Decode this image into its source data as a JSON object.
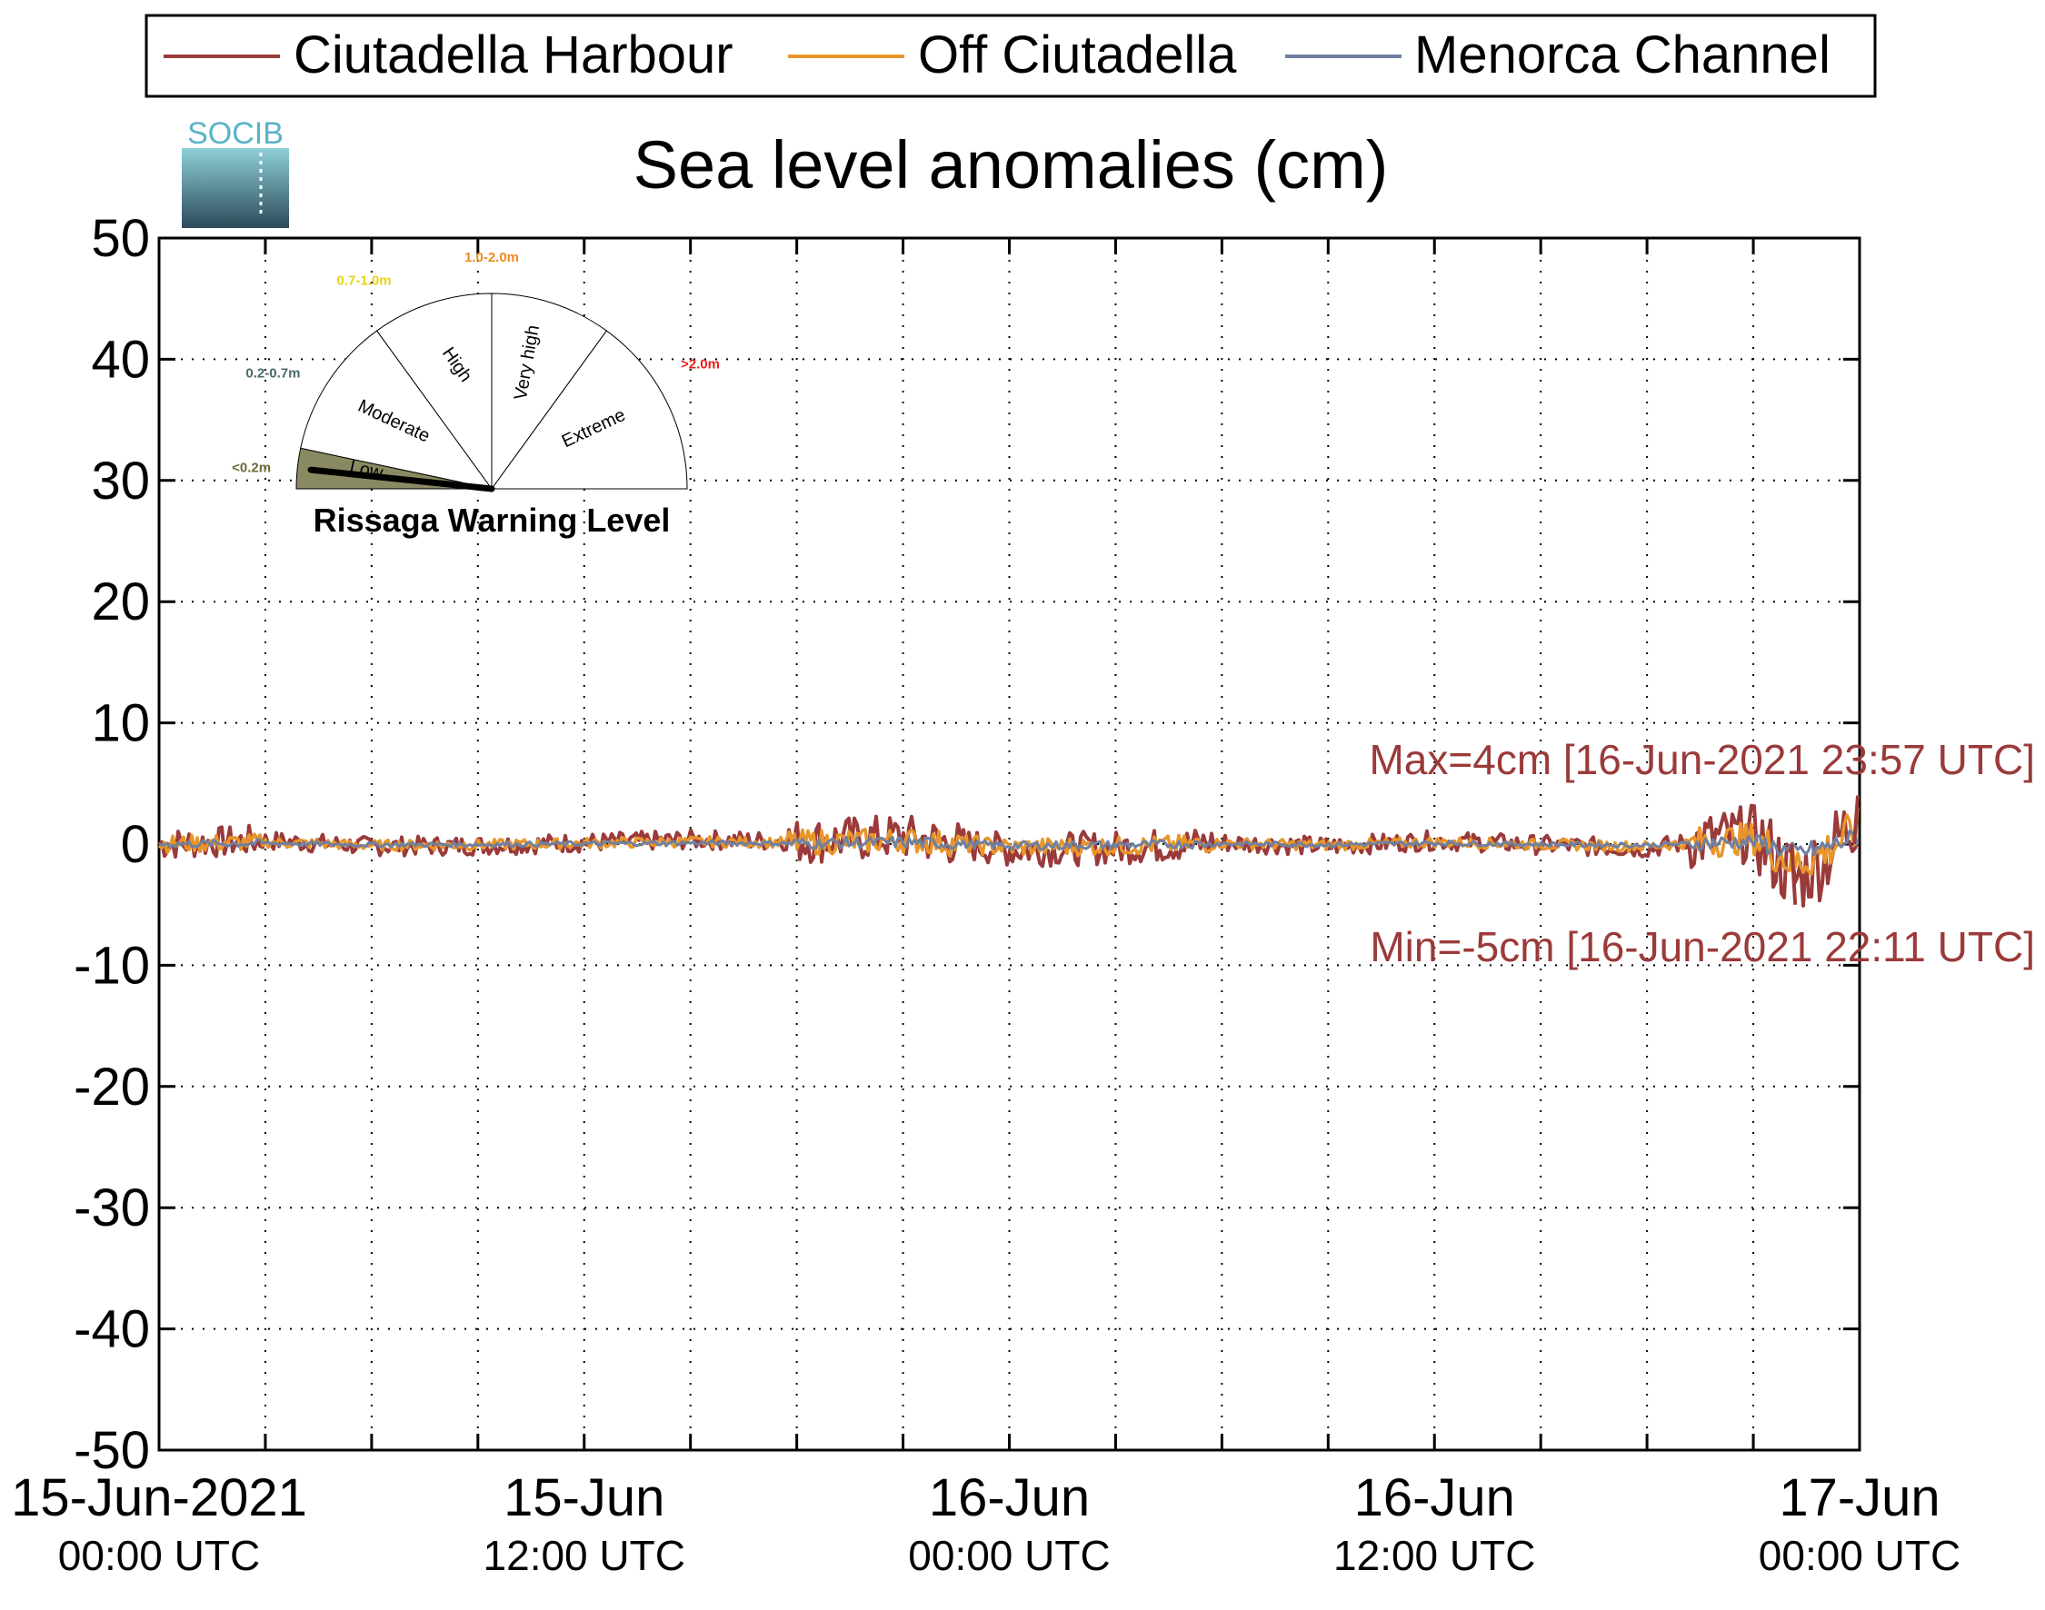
{
  "chart_data": {
    "type": "line",
    "title": "Sea level anomalies (cm)",
    "xlabel": "",
    "ylabel": "",
    "ylim": [
      -50,
      50
    ],
    "yticks": [
      50,
      40,
      30,
      20,
      10,
      0,
      -10,
      -20,
      -30,
      -40,
      -50
    ],
    "xlim": [
      "2021-06-15 00:00",
      "2021-06-17 00:00"
    ],
    "x_tick_labels": [
      {
        "date": "15-Jun-2021",
        "time": "00:00 UTC"
      },
      {
        "date": "15-Jun",
        "time": "12:00 UTC"
      },
      {
        "date": "16-Jun",
        "time": "00:00 UTC"
      },
      {
        "date": "16-Jun",
        "time": "12:00 UTC"
      },
      {
        "date": "17-Jun",
        "time": "00:00 UTC"
      }
    ],
    "grid": true,
    "legend_position": "top",
    "series": [
      {
        "name": "Ciutadella Harbour",
        "color": "#9b3a3a"
      },
      {
        "name": "Off Ciutadella",
        "color": "#e8962a"
      },
      {
        "name": "Menorca Channel",
        "color": "#7080a0"
      }
    ],
    "x": [
      "2021-06-15 00:00",
      "2021-06-15 03:00",
      "2021-06-15 06:00",
      "2021-06-15 09:00",
      "2021-06-15 12:00",
      "2021-06-15 15:00",
      "2021-06-15 18:00",
      "2021-06-15 21:00",
      "2021-06-16 00:00",
      "2021-06-16 03:00",
      "2021-06-16 06:00",
      "2021-06-16 09:00",
      "2021-06-16 12:00",
      "2021-06-16 15:00",
      "2021-06-16 18:00",
      "2021-06-16 21:00",
      "2021-06-16 22:11",
      "2021-06-16 23:00",
      "2021-06-16 23:57"
    ],
    "harbour_values": [
      0,
      0.5,
      -0.3,
      -0.2,
      0.2,
      0.6,
      0.4,
      1.0,
      -0.8,
      -0.5,
      0.2,
      -0.3,
      0.5,
      -0.1,
      -0.6,
      1.5,
      -5,
      -2,
      4
    ],
    "annotations": {
      "max": "Max=4cm [16-Jun-2021 23:57 UTC]",
      "min": "Min=-5cm [16-Jun-2021 22:11 UTC]"
    },
    "warning_gauge": {
      "title": "Rissaga Warning Level",
      "current_level": "Low",
      "levels": [
        {
          "name": "Low",
          "range": "<0.2m",
          "color": "#6b6b3a"
        },
        {
          "name": "Moderate",
          "range": "0.2-0.7m",
          "color": "#4a6a6a"
        },
        {
          "name": "High",
          "range": "0.7-1.0m",
          "color": "#e6d21a"
        },
        {
          "name": "Very high",
          "range": "1.0-2.0m",
          "color": "#f08a1c"
        },
        {
          "name": "Extreme",
          "range": ">2.0m",
          "color": "#e8201a"
        }
      ]
    },
    "logo_text": "SOCIB"
  }
}
